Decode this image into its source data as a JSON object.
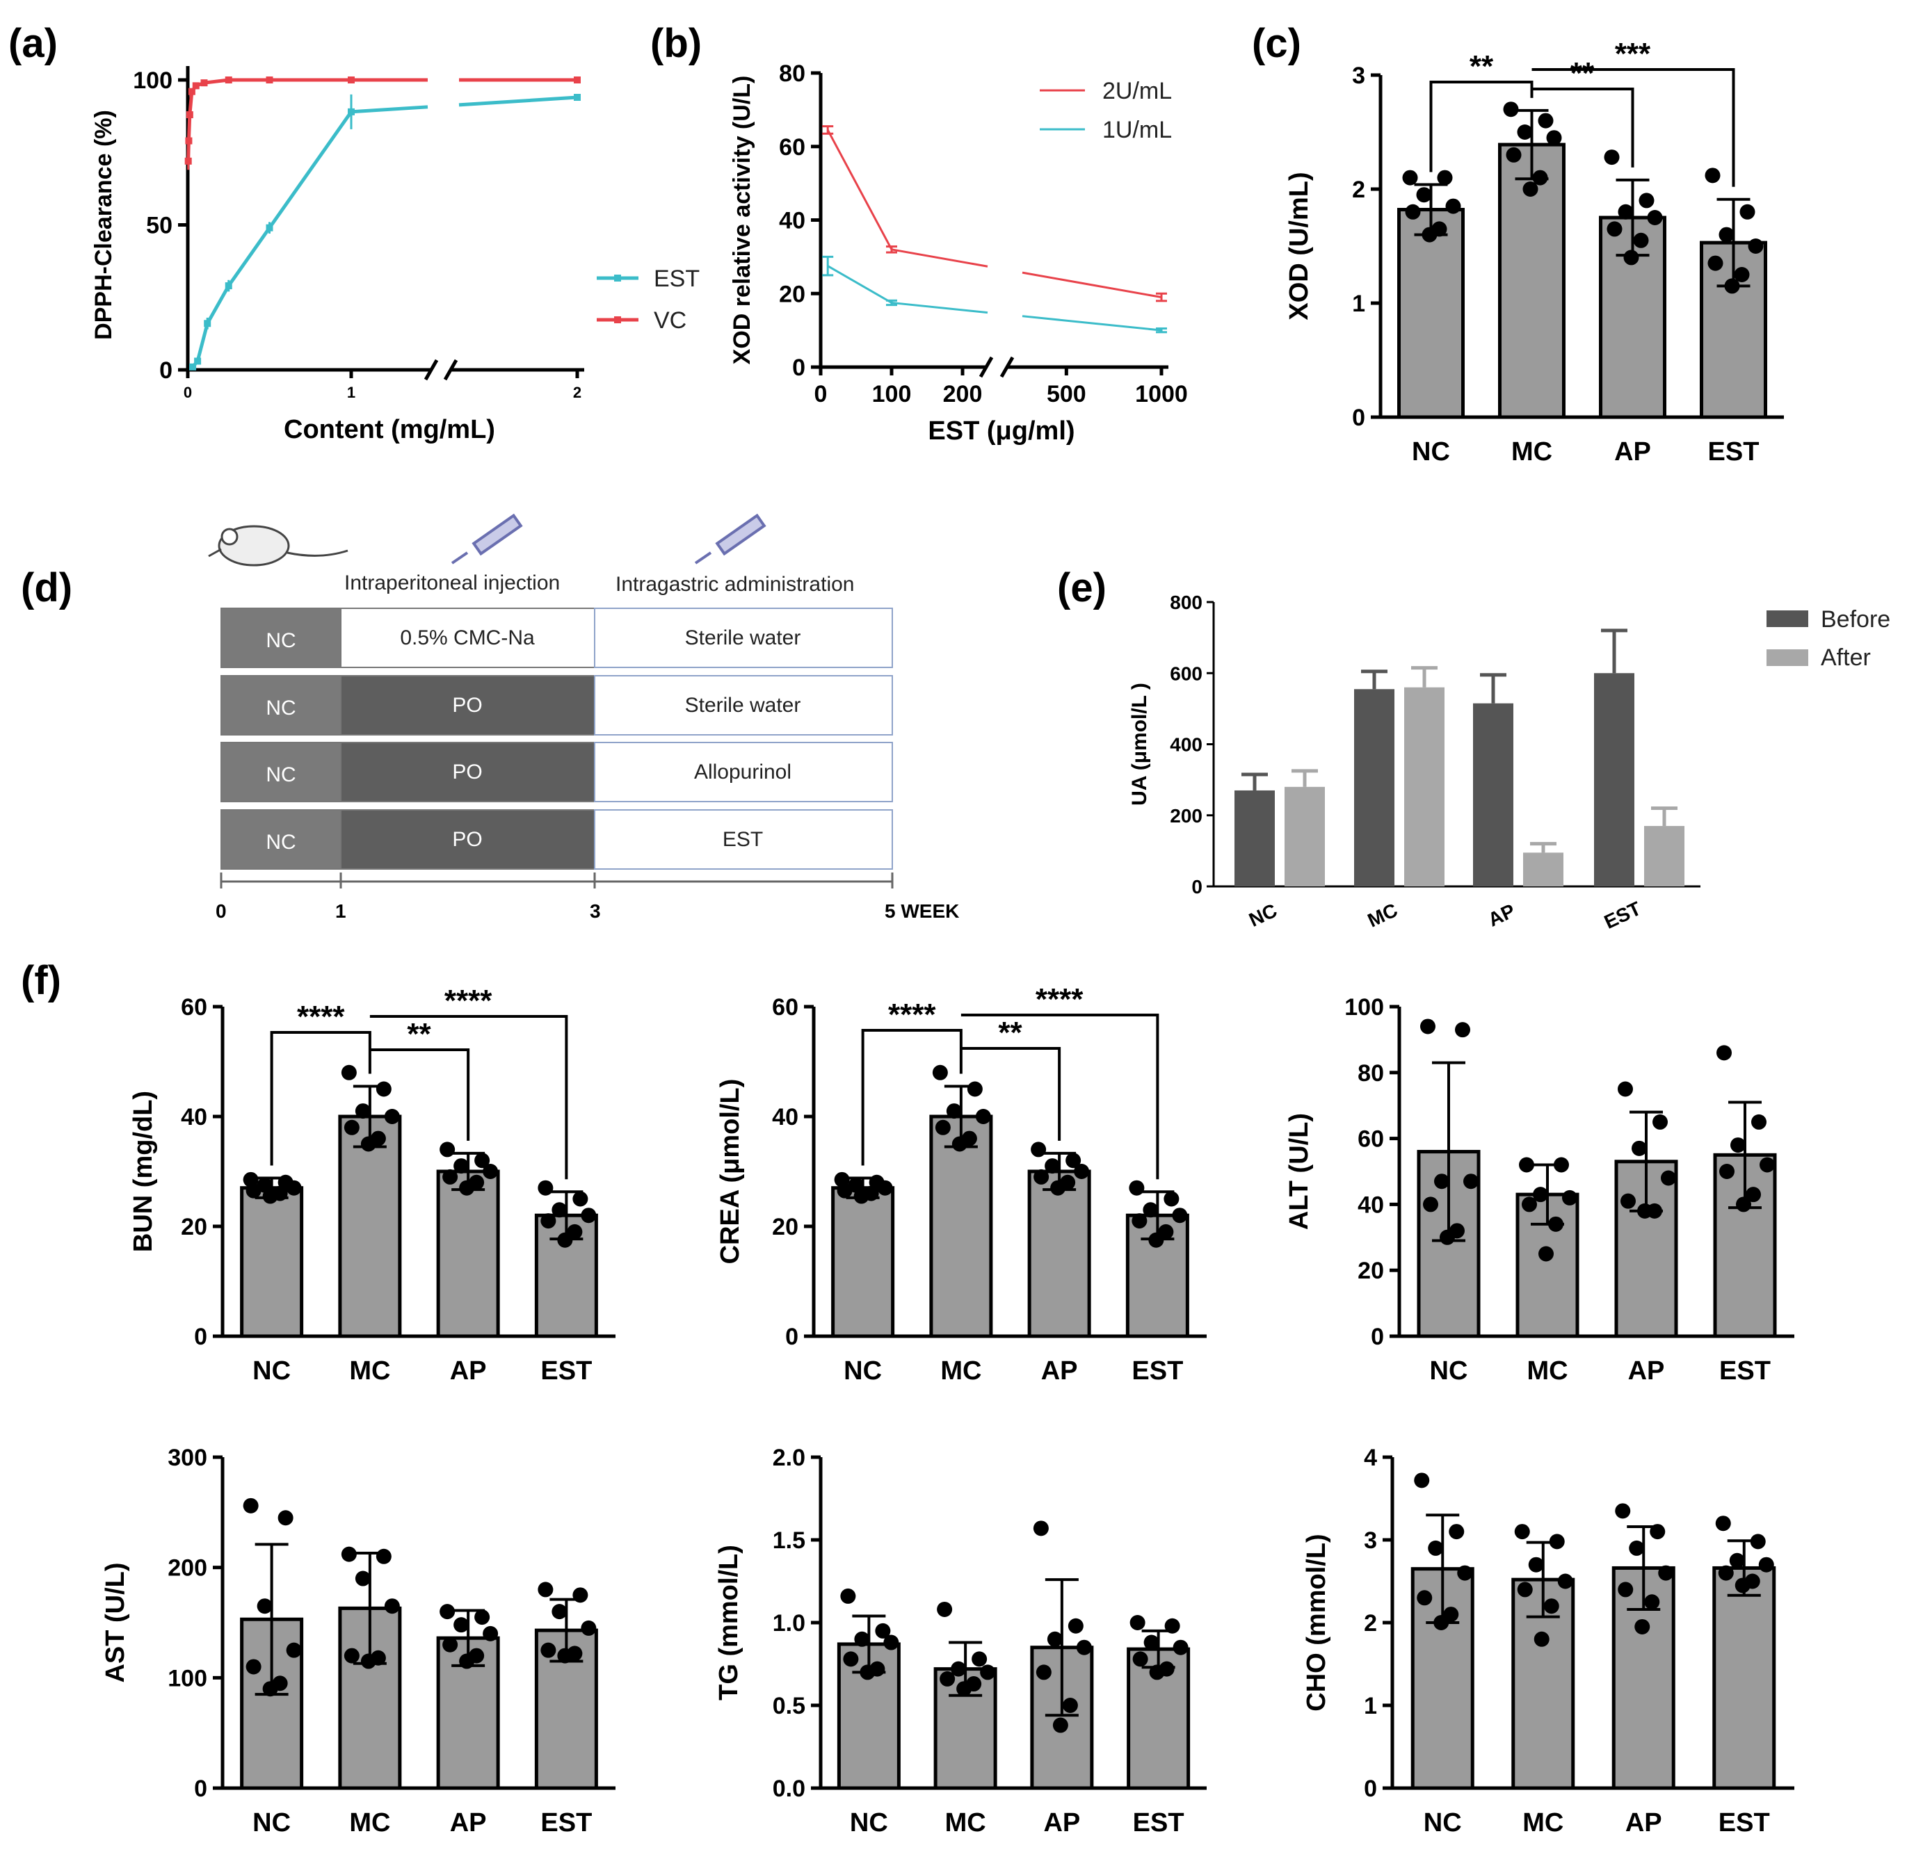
{
  "panels": [
    "(a)",
    "(b)",
    "(c)",
    "(d)",
    "(e)",
    "(f)"
  ],
  "colors": {
    "est": "#3bbcc9",
    "vc": "#e8424a",
    "bar": "#9b9b9b",
    "before": "#555555",
    "after": "#a8a8a8",
    "dark": "#5e5e5e",
    "nc": "#7a7a7a"
  },
  "chart_data": [
    {
      "id": "a",
      "type": "line",
      "xlabel": "Content (mg/mL)",
      "ylabel": "DPPH-Clearance (%)",
      "ylim": [
        0,
        100
      ],
      "yticks": [
        "0",
        "50",
        "100"
      ],
      "xticks": [
        "0",
        "1",
        "2"
      ],
      "series": [
        {
          "name": "EST",
          "x": [
            0.03,
            0.06,
            0.12,
            0.25,
            0.5,
            1.0,
            2.0
          ],
          "y": [
            1,
            3,
            16,
            29,
            49,
            89,
            94
          ],
          "err": [
            1,
            1,
            2,
            2,
            2,
            6,
            1
          ]
        },
        {
          "name": "VC",
          "x": [
            0.003,
            0.006,
            0.012,
            0.025,
            0.05,
            0.1,
            0.25,
            0.5,
            1.0,
            2.0
          ],
          "y": [
            72,
            79,
            88,
            96,
            98,
            99,
            100,
            100,
            100,
            100
          ],
          "err": [
            3,
            3,
            2,
            1,
            1,
            0.5,
            0.5,
            0.5,
            0.5,
            0.5
          ]
        }
      ],
      "legend": [
        "EST",
        "VC"
      ]
    },
    {
      "id": "b",
      "type": "line",
      "xlabel": "EST (μg/ml)",
      "ylabel": "XOD relative activity (U/L)",
      "ylim": [
        0,
        80
      ],
      "yticks": [
        "0",
        "20",
        "40",
        "60",
        "80"
      ],
      "xticks": [
        "0",
        "100",
        "200",
        "500",
        "1000"
      ],
      "series": [
        {
          "name": "2U/mL",
          "x": [
            10,
            100,
            1000
          ],
          "y": [
            64.5,
            32,
            19
          ],
          "err": [
            1,
            0.8,
            1
          ]
        },
        {
          "name": "1U/mL",
          "x": [
            10,
            100,
            1000
          ],
          "y": [
            27.5,
            17.5,
            10
          ],
          "err": [
            2.5,
            0.6,
            0.5
          ]
        }
      ]
    },
    {
      "id": "c",
      "type": "bar",
      "ylabel": "XOD (U/mL)",
      "categories": [
        "NC",
        "MC",
        "AP",
        "EST"
      ],
      "values": [
        1.82,
        2.39,
        1.75,
        1.53
      ],
      "sd": [
        0.22,
        0.3,
        0.33,
        0.38
      ],
      "points": [
        [
          2.1,
          2.1,
          1.95,
          1.85,
          1.8,
          1.65,
          1.6
        ],
        [
          2.7,
          2.6,
          2.5,
          2.45,
          2.3,
          2.1,
          2.0
        ],
        [
          2.28,
          1.9,
          1.8,
          1.75,
          1.65,
          1.55,
          1.4
        ],
        [
          2.12,
          1.8,
          1.6,
          1.5,
          1.35,
          1.25,
          1.15
        ]
      ],
      "ylim": [
        0,
        3
      ],
      "yticks": [
        "0",
        "1",
        "2",
        "3"
      ],
      "sig": [
        {
          "from": 0,
          "to": 1,
          "label": "**"
        },
        {
          "from": 1,
          "to": 2,
          "label": "**"
        },
        {
          "from": 1,
          "to": 3,
          "label": "***"
        }
      ]
    },
    {
      "id": "e",
      "type": "bar",
      "ylabel": "UA (μmol/L )",
      "categories": [
        "NC",
        "MC",
        "AP",
        "EST"
      ],
      "series": [
        {
          "name": "Before",
          "values": [
            270,
            555,
            515,
            600
          ],
          "sd": [
            45,
            50,
            80,
            120
          ]
        },
        {
          "name": "After",
          "values": [
            280,
            560,
            95,
            170
          ],
          "sd": [
            45,
            55,
            25,
            50
          ]
        }
      ],
      "ylim": [
        0,
        800
      ],
      "yticks": [
        "0",
        "200",
        "400",
        "600",
        "800"
      ]
    },
    {
      "id": "f1",
      "type": "bar",
      "ylabel": "BUN (mg/dL)",
      "categories": [
        "NC",
        "MC",
        "AP",
        "EST"
      ],
      "values": [
        27,
        40,
        30,
        22
      ],
      "sd": [
        1.8,
        5.5,
        3.3,
        4.3
      ],
      "ylim": [
        0,
        60
      ],
      "yticks": [
        "0",
        "20",
        "40",
        "60"
      ],
      "points": [
        [
          28.5,
          28,
          27.5,
          27,
          26.5,
          26,
          25.5
        ],
        [
          48,
          45,
          41,
          40,
          38,
          36,
          35
        ],
        [
          34,
          32,
          31,
          30,
          29,
          28,
          27
        ],
        [
          27,
          25,
          23,
          22,
          21,
          19,
          17.5
        ]
      ],
      "sig": [
        {
          "from": 0,
          "to": 1,
          "label": "****"
        },
        {
          "from": 1,
          "to": 2,
          "label": "**"
        },
        {
          "from": 1,
          "to": 3,
          "label": "****"
        }
      ]
    },
    {
      "id": "f2",
      "type": "bar",
      "ylabel": "CREA (μmol/L)",
      "categories": [
        "NC",
        "MC",
        "AP",
        "EST"
      ],
      "values": [
        27,
        40,
        30,
        22
      ],
      "sd": [
        1.8,
        5.5,
        3.3,
        4.3
      ],
      "ylim": [
        0,
        60
      ],
      "yticks": [
        "0",
        "20",
        "40",
        "60"
      ],
      "points": [
        [
          28.5,
          28,
          27.5,
          27,
          26.5,
          26,
          25.5
        ],
        [
          48,
          45,
          41,
          40,
          38,
          36,
          35
        ],
        [
          34,
          32,
          31,
          30,
          29,
          28,
          27
        ],
        [
          27,
          25,
          23,
          22,
          21,
          19,
          17.5
        ]
      ],
      "sig": [
        {
          "from": 0,
          "to": 1,
          "label": "****"
        },
        {
          "from": 1,
          "to": 2,
          "label": "**"
        },
        {
          "from": 1,
          "to": 3,
          "label": "****"
        }
      ]
    },
    {
      "id": "f3",
      "type": "bar",
      "ylabel": "ALT (U/L)",
      "categories": [
        "NC",
        "MC",
        "AP",
        "EST"
      ],
      "values": [
        56,
        43,
        53,
        55
      ],
      "sd": [
        27,
        9,
        15,
        16
      ],
      "ylim": [
        0,
        100
      ],
      "yticks": [
        "0",
        "20",
        "40",
        "60",
        "80",
        "100"
      ],
      "points": [
        [
          94,
          93,
          47,
          47,
          40,
          32,
          30
        ],
        [
          52,
          52,
          43,
          42,
          40,
          34,
          25
        ],
        [
          75,
          65,
          57,
          48,
          41,
          38,
          38
        ],
        [
          86,
          65,
          58,
          52,
          50,
          43,
          40
        ]
      ]
    },
    {
      "id": "f4",
      "type": "bar",
      "ylabel": "AST (U/L)",
      "categories": [
        "NC",
        "MC",
        "AP",
        "EST"
      ],
      "values": [
        153,
        163,
        136,
        143
      ],
      "sd": [
        68,
        50,
        25,
        28
      ],
      "ylim": [
        0,
        300
      ],
      "yticks": [
        "0",
        "100",
        "200",
        "300"
      ],
      "points": [
        [
          256,
          245,
          165,
          125,
          110,
          95,
          90
        ],
        [
          212,
          210,
          190,
          165,
          120,
          118,
          115
        ],
        [
          160,
          155,
          148,
          140,
          130,
          120,
          115
        ],
        [
          180,
          175,
          160,
          145,
          125,
          122,
          120
        ]
      ]
    },
    {
      "id": "f5",
      "type": "bar",
      "ylabel": "TG (mmol/L)",
      "categories": [
        "NC",
        "MC",
        "AP",
        "EST"
      ],
      "values": [
        0.87,
        0.72,
        0.85,
        0.84
      ],
      "sd": [
        0.17,
        0.16,
        0.41,
        0.11
      ],
      "ylim": [
        0,
        2.0
      ],
      "yticks": [
        "0.0",
        "0.5",
        "1.0",
        "1.5",
        "2.0"
      ],
      "points": [
        [
          1.16,
          0.95,
          0.9,
          0.88,
          0.78,
          0.72,
          0.7
        ],
        [
          1.08,
          0.78,
          0.72,
          0.7,
          0.66,
          0.63,
          0.6
        ],
        [
          1.57,
          0.98,
          0.9,
          0.85,
          0.7,
          0.5,
          0.38
        ],
        [
          1.0,
          0.98,
          0.88,
          0.85,
          0.78,
          0.72,
          0.7
        ]
      ]
    },
    {
      "id": "f6",
      "type": "bar",
      "ylabel": "CHO (mmol/L)",
      "categories": [
        "NC",
        "MC",
        "AP",
        "EST"
      ],
      "values": [
        2.65,
        2.52,
        2.66,
        2.66
      ],
      "sd": [
        0.65,
        0.45,
        0.5,
        0.33
      ],
      "ylim": [
        0,
        4
      ],
      "yticks": [
        "0",
        "1",
        "2",
        "3",
        "4"
      ],
      "points": [
        [
          3.72,
          3.1,
          2.9,
          2.6,
          2.3,
          2.1,
          2.0
        ],
        [
          3.1,
          2.98,
          2.7,
          2.5,
          2.4,
          2.2,
          1.8
        ],
        [
          3.35,
          3.1,
          2.9,
          2.6,
          2.4,
          2.25,
          1.95
        ],
        [
          3.2,
          2.98,
          2.75,
          2.7,
          2.6,
          2.5,
          2.45
        ]
      ]
    }
  ],
  "schematic": {
    "stage1": "Intraperitoneal injection",
    "stage2": "Intragastric administration",
    "rows": [
      {
        "c0": "NC",
        "c1": "0.5% CMC-Na",
        "c2": "Sterile water"
      },
      {
        "c0": "NC",
        "c1": "PO",
        "c2": "Sterile water"
      },
      {
        "c0": "NC",
        "c1": "PO",
        "c2": "Allopurinol"
      },
      {
        "c0": "NC",
        "c1": "PO",
        "c2": "EST"
      }
    ],
    "timeline": [
      "0",
      "1",
      "3",
      "5 WEEK"
    ]
  }
}
